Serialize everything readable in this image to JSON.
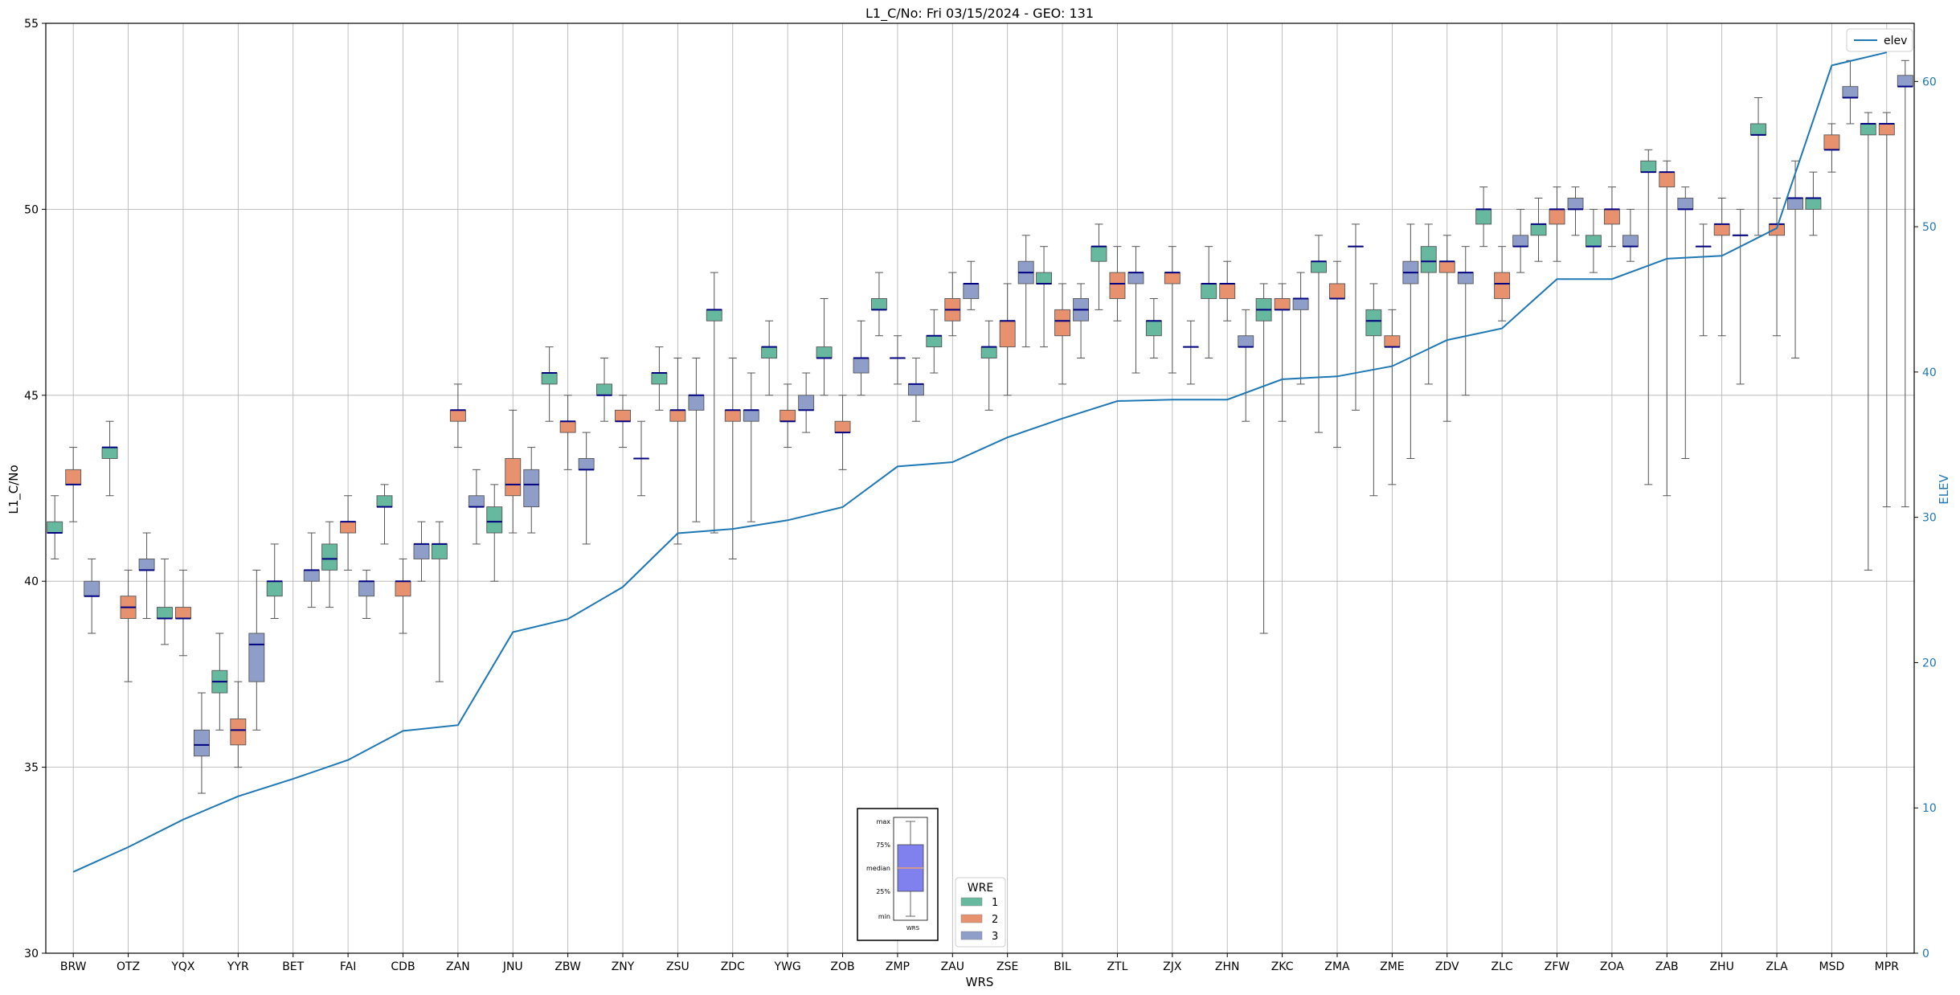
{
  "chart_data": {
    "type": "boxplot",
    "title": "L1_C/No: Fri 03/15/2024 - GEO: 131",
    "xlabel": "WRS",
    "ylabel": "L1_C/No",
    "y2label": "ELEV",
    "ylim": [
      30,
      55
    ],
    "y2lim": [
      0,
      64
    ],
    "yticks": [
      "30",
      "35",
      "40",
      "45",
      "50",
      "55"
    ],
    "y2ticks": [
      "0",
      "10",
      "20",
      "30",
      "40",
      "50",
      "60"
    ],
    "grid": true,
    "legend_line": {
      "label": "elev",
      "placement": "top-right"
    },
    "legend_boxes": {
      "title": "WRE",
      "placement": "bottom-center",
      "entries": [
        {
          "label": "1",
          "color": "#66b89e"
        },
        {
          "label": "2",
          "color": "#e8916e"
        },
        {
          "label": "3",
          "color": "#8f9ec8"
        }
      ]
    },
    "key_box": {
      "labels": [
        "max",
        "75%",
        "median",
        "25%",
        "min"
      ],
      "xlabel": "WRS",
      "fill": "#8080ee",
      "median_color": "#e8a070"
    },
    "line_color": "#1f77b4",
    "median_color": "#000080",
    "categories": [
      "BRW",
      "OTZ",
      "YQX",
      "YYR",
      "BET",
      "FAI",
      "CDB",
      "ZAN",
      "JNU",
      "ZBW",
      "ZNY",
      "ZSU",
      "ZDC",
      "YWG",
      "ZOB",
      "ZMP",
      "ZAU",
      "ZSE",
      "BIL",
      "ZTL",
      "ZJX",
      "ZHN",
      "ZKC",
      "ZMA",
      "ZME",
      "ZDV",
      "ZLC",
      "ZFW",
      "ZOA",
      "ZAB",
      "ZHU",
      "ZLA",
      "MSD",
      "MPR"
    ],
    "elev": [
      5.6,
      7.3,
      9.2,
      10.8,
      12.0,
      13.3,
      15.3,
      15.7,
      22.1,
      23.0,
      25.2,
      28.9,
      29.2,
      29.8,
      30.7,
      33.5,
      33.8,
      35.5,
      36.8,
      38.0,
      38.1,
      38.1,
      39.5,
      39.7,
      40.4,
      42.2,
      43.0,
      46.4,
      46.4,
      47.8,
      48.0,
      49.9,
      61.1,
      62.0
    ],
    "boxes": [
      {
        "wrs": "BRW",
        "wre": 1,
        "min": 40.6,
        "q1": 41.3,
        "median": 41.3,
        "q3": 41.6,
        "max": 42.3
      },
      {
        "wrs": "BRW",
        "wre": 2,
        "min": 41.6,
        "q1": 42.6,
        "median": 42.6,
        "q3": 43.0,
        "max": 43.6
      },
      {
        "wrs": "BRW",
        "wre": 3,
        "min": 38.6,
        "q1": 39.6,
        "median": 39.6,
        "q3": 40.0,
        "max": 40.6
      },
      {
        "wrs": "OTZ",
        "wre": 1,
        "min": 42.3,
        "q1": 43.3,
        "median": 43.6,
        "q3": 43.6,
        "max": 44.3
      },
      {
        "wrs": "OTZ",
        "wre": 2,
        "min": 37.3,
        "q1": 39.0,
        "median": 39.3,
        "q3": 39.6,
        "max": 40.3
      },
      {
        "wrs": "OTZ",
        "wre": 3,
        "min": 39.0,
        "q1": 40.3,
        "median": 40.3,
        "q3": 40.6,
        "max": 41.3
      },
      {
        "wrs": "YQX",
        "wre": 1,
        "min": 38.3,
        "q1": 39.0,
        "median": 39.0,
        "q3": 39.3,
        "max": 40.6
      },
      {
        "wrs": "YQX",
        "wre": 2,
        "min": 38.0,
        "q1": 39.0,
        "median": 39.0,
        "q3": 39.3,
        "max": 40.3
      },
      {
        "wrs": "YQX",
        "wre": 3,
        "min": 34.3,
        "q1": 35.3,
        "median": 35.6,
        "q3": 36.0,
        "max": 37.0
      },
      {
        "wrs": "YYR",
        "wre": 1,
        "min": 36.0,
        "q1": 37.0,
        "median": 37.3,
        "q3": 37.6,
        "max": 38.6
      },
      {
        "wrs": "YYR",
        "wre": 2,
        "min": 35.0,
        "q1": 35.6,
        "median": 36.0,
        "q3": 36.3,
        "max": 37.3
      },
      {
        "wrs": "YYR",
        "wre": 3,
        "min": 36.0,
        "q1": 37.3,
        "median": 38.3,
        "q3": 38.6,
        "max": 40.3
      },
      {
        "wrs": "BET",
        "wre": 1,
        "min": 39.0,
        "q1": 39.6,
        "median": 40.0,
        "q3": 40.0,
        "max": 41.0
      },
      {
        "wrs": "BET",
        "wre": 3,
        "min": 39.3,
        "q1": 40.0,
        "median": 40.3,
        "q3": 40.3,
        "max": 41.3
      },
      {
        "wrs": "FAI",
        "wre": 1,
        "min": 39.3,
        "q1": 40.3,
        "median": 40.6,
        "q3": 41.0,
        "max": 41.6
      },
      {
        "wrs": "FAI",
        "wre": 2,
        "min": 40.3,
        "q1": 41.3,
        "median": 41.6,
        "q3": 41.6,
        "max": 42.3
      },
      {
        "wrs": "FAI",
        "wre": 3,
        "min": 39.0,
        "q1": 39.6,
        "median": 40.0,
        "q3": 40.0,
        "max": 40.3
      },
      {
        "wrs": "CDB",
        "wre": 1,
        "min": 41.0,
        "q1": 42.0,
        "median": 42.0,
        "q3": 42.3,
        "max": 42.6
      },
      {
        "wrs": "CDB",
        "wre": 2,
        "min": 38.6,
        "q1": 39.6,
        "median": 40.0,
        "q3": 40.0,
        "max": 40.6
      },
      {
        "wrs": "CDB",
        "wre": 3,
        "min": 40.0,
        "q1": 40.6,
        "median": 41.0,
        "q3": 41.0,
        "max": 41.6
      },
      {
        "wrs": "ZAN",
        "wre": 1,
        "min": 37.3,
        "q1": 40.6,
        "median": 41.0,
        "q3": 41.0,
        "max": 41.6
      },
      {
        "wrs": "ZAN",
        "wre": 2,
        "min": 43.6,
        "q1": 44.3,
        "median": 44.6,
        "q3": 44.6,
        "max": 45.3
      },
      {
        "wrs": "ZAN",
        "wre": 3,
        "min": 41.0,
        "q1": 42.0,
        "median": 42.0,
        "q3": 42.3,
        "max": 43.0
      },
      {
        "wrs": "JNU",
        "wre": 1,
        "min": 40.0,
        "q1": 41.3,
        "median": 41.6,
        "q3": 42.0,
        "max": 42.6
      },
      {
        "wrs": "JNU",
        "wre": 2,
        "min": 41.3,
        "q1": 42.3,
        "median": 42.6,
        "q3": 43.3,
        "max": 44.6
      },
      {
        "wrs": "JNU",
        "wre": 3,
        "min": 41.3,
        "q1": 42.0,
        "median": 42.6,
        "q3": 43.0,
        "max": 43.6
      },
      {
        "wrs": "ZBW",
        "wre": 1,
        "min": 44.3,
        "q1": 45.3,
        "median": 45.6,
        "q3": 45.6,
        "max": 46.3
      },
      {
        "wrs": "ZBW",
        "wre": 2,
        "min": 43.0,
        "q1": 44.0,
        "median": 44.3,
        "q3": 44.3,
        "max": 45.0
      },
      {
        "wrs": "ZBW",
        "wre": 3,
        "min": 41.0,
        "q1": 43.0,
        "median": 43.0,
        "q3": 43.3,
        "max": 44.0
      },
      {
        "wrs": "ZNY",
        "wre": 1,
        "min": 44.3,
        "q1": 45.0,
        "median": 45.0,
        "q3": 45.3,
        "max": 46.0
      },
      {
        "wrs": "ZNY",
        "wre": 2,
        "min": 43.6,
        "q1": 44.3,
        "median": 44.3,
        "q3": 44.6,
        "max": 45.0
      },
      {
        "wrs": "ZNY",
        "wre": 3,
        "min": 42.3,
        "q1": 43.3,
        "median": 43.3,
        "q3": 43.3,
        "max": 44.3
      },
      {
        "wrs": "ZSU",
        "wre": 1,
        "min": 44.6,
        "q1": 45.3,
        "median": 45.6,
        "q3": 45.6,
        "max": 46.3
      },
      {
        "wrs": "ZSU",
        "wre": 2,
        "min": 41.0,
        "q1": 44.3,
        "median": 44.6,
        "q3": 44.6,
        "max": 46.0
      },
      {
        "wrs": "ZSU",
        "wre": 3,
        "min": 41.6,
        "q1": 44.6,
        "median": 45.0,
        "q3": 45.0,
        "max": 46.0
      },
      {
        "wrs": "ZDC",
        "wre": 1,
        "min": 41.3,
        "q1": 47.0,
        "median": 47.3,
        "q3": 47.3,
        "max": 48.3
      },
      {
        "wrs": "ZDC",
        "wre": 2,
        "min": 40.6,
        "q1": 44.3,
        "median": 44.6,
        "q3": 44.6,
        "max": 46.0
      },
      {
        "wrs": "ZDC",
        "wre": 3,
        "min": 41.6,
        "q1": 44.3,
        "median": 44.6,
        "q3": 44.6,
        "max": 45.6
      },
      {
        "wrs": "YWG",
        "wre": 1,
        "min": 45.0,
        "q1": 46.0,
        "median": 46.3,
        "q3": 46.3,
        "max": 47.0
      },
      {
        "wrs": "YWG",
        "wre": 2,
        "min": 43.6,
        "q1": 44.3,
        "median": 44.3,
        "q3": 44.6,
        "max": 45.3
      },
      {
        "wrs": "YWG",
        "wre": 3,
        "min": 44.0,
        "q1": 44.6,
        "median": 44.6,
        "q3": 45.0,
        "max": 45.6
      },
      {
        "wrs": "ZOB",
        "wre": 1,
        "min": 45.0,
        "q1": 46.0,
        "median": 46.0,
        "q3": 46.3,
        "max": 47.6
      },
      {
        "wrs": "ZOB",
        "wre": 2,
        "min": 43.0,
        "q1": 44.0,
        "median": 44.0,
        "q3": 44.3,
        "max": 45.0
      },
      {
        "wrs": "ZOB",
        "wre": 3,
        "min": 45.0,
        "q1": 45.6,
        "median": 46.0,
        "q3": 46.0,
        "max": 47.0
      },
      {
        "wrs": "ZMP",
        "wre": 1,
        "min": 46.6,
        "q1": 47.3,
        "median": 47.3,
        "q3": 47.6,
        "max": 48.3
      },
      {
        "wrs": "ZMP",
        "wre": 2,
        "min": 45.3,
        "q1": 46.0,
        "median": 46.0,
        "q3": 46.0,
        "max": 46.6
      },
      {
        "wrs": "ZMP",
        "wre": 3,
        "min": 44.3,
        "q1": 45.0,
        "median": 45.3,
        "q3": 45.3,
        "max": 46.0
      },
      {
        "wrs": "ZAU",
        "wre": 1,
        "min": 45.6,
        "q1": 46.3,
        "median": 46.6,
        "q3": 46.6,
        "max": 47.3
      },
      {
        "wrs": "ZAU",
        "wre": 2,
        "min": 46.6,
        "q1": 47.0,
        "median": 47.3,
        "q3": 47.6,
        "max": 48.3
      },
      {
        "wrs": "ZAU",
        "wre": 3,
        "min": 47.3,
        "q1": 47.6,
        "median": 48.0,
        "q3": 48.0,
        "max": 48.6
      },
      {
        "wrs": "ZSE",
        "wre": 1,
        "min": 44.6,
        "q1": 46.0,
        "median": 46.3,
        "q3": 46.3,
        "max": 47.0
      },
      {
        "wrs": "ZSE",
        "wre": 2,
        "min": 45.0,
        "q1": 46.3,
        "median": 47.0,
        "q3": 47.0,
        "max": 48.0
      },
      {
        "wrs": "ZSE",
        "wre": 3,
        "min": 46.3,
        "q1": 48.0,
        "median": 48.3,
        "q3": 48.6,
        "max": 49.3
      },
      {
        "wrs": "BIL",
        "wre": 1,
        "min": 46.3,
        "q1": 48.0,
        "median": 48.0,
        "q3": 48.3,
        "max": 49.0
      },
      {
        "wrs": "BIL",
        "wre": 2,
        "min": 45.3,
        "q1": 46.6,
        "median": 47.0,
        "q3": 47.3,
        "max": 48.0
      },
      {
        "wrs": "BIL",
        "wre": 3,
        "min": 46.0,
        "q1": 47.0,
        "median": 47.3,
        "q3": 47.6,
        "max": 48.0
      },
      {
        "wrs": "ZTL",
        "wre": 1,
        "min": 47.3,
        "q1": 48.6,
        "median": 49.0,
        "q3": 49.0,
        "max": 49.6
      },
      {
        "wrs": "ZTL",
        "wre": 2,
        "min": 47.0,
        "q1": 47.6,
        "median": 48.0,
        "q3": 48.3,
        "max": 49.0
      },
      {
        "wrs": "ZTL",
        "wre": 3,
        "min": 45.6,
        "q1": 48.0,
        "median": 48.3,
        "q3": 48.3,
        "max": 49.0
      },
      {
        "wrs": "ZJX",
        "wre": 1,
        "min": 46.0,
        "q1": 46.6,
        "median": 47.0,
        "q3": 47.0,
        "max": 47.6
      },
      {
        "wrs": "ZJX",
        "wre": 2,
        "min": 45.6,
        "q1": 48.0,
        "median": 48.3,
        "q3": 48.3,
        "max": 49.0
      },
      {
        "wrs": "ZJX",
        "wre": 3,
        "min": 45.3,
        "q1": 46.3,
        "median": 46.3,
        "q3": 46.3,
        "max": 47.0
      },
      {
        "wrs": "ZHN",
        "wre": 1,
        "min": 46.0,
        "q1": 47.6,
        "median": 48.0,
        "q3": 48.0,
        "max": 49.0
      },
      {
        "wrs": "ZHN",
        "wre": 2,
        "min": 47.0,
        "q1": 47.6,
        "median": 48.0,
        "q3": 48.0,
        "max": 48.6
      },
      {
        "wrs": "ZHN",
        "wre": 3,
        "min": 44.3,
        "q1": 46.3,
        "median": 46.3,
        "q3": 46.6,
        "max": 47.3
      },
      {
        "wrs": "ZKC",
        "wre": 1,
        "min": 38.6,
        "q1": 47.0,
        "median": 47.3,
        "q3": 47.6,
        "max": 48.0
      },
      {
        "wrs": "ZKC",
        "wre": 2,
        "min": 44.3,
        "q1": 47.3,
        "median": 47.3,
        "q3": 47.6,
        "max": 48.0
      },
      {
        "wrs": "ZKC",
        "wre": 3,
        "min": 45.3,
        "q1": 47.3,
        "median": 47.6,
        "q3": 47.6,
        "max": 48.3
      },
      {
        "wrs": "ZMA",
        "wre": 1,
        "min": 44.0,
        "q1": 48.3,
        "median": 48.6,
        "q3": 48.6,
        "max": 49.3
      },
      {
        "wrs": "ZMA",
        "wre": 2,
        "min": 43.6,
        "q1": 47.6,
        "median": 47.6,
        "q3": 48.0,
        "max": 48.6
      },
      {
        "wrs": "ZMA",
        "wre": 3,
        "min": 44.6,
        "q1": 49.0,
        "median": 49.0,
        "q3": 49.0,
        "max": 49.6
      },
      {
        "wrs": "ZME",
        "wre": 1,
        "min": 42.3,
        "q1": 46.6,
        "median": 47.0,
        "q3": 47.3,
        "max": 48.0
      },
      {
        "wrs": "ZME",
        "wre": 2,
        "min": 42.6,
        "q1": 46.3,
        "median": 46.3,
        "q3": 46.6,
        "max": 47.3
      },
      {
        "wrs": "ZME",
        "wre": 3,
        "min": 43.3,
        "q1": 48.0,
        "median": 48.3,
        "q3": 48.6,
        "max": 49.6
      },
      {
        "wrs": "ZDV",
        "wre": 1,
        "min": 45.3,
        "q1": 48.3,
        "median": 48.6,
        "q3": 49.0,
        "max": 49.6
      },
      {
        "wrs": "ZDV",
        "wre": 2,
        "min": 44.3,
        "q1": 48.3,
        "median": 48.6,
        "q3": 48.6,
        "max": 49.3
      },
      {
        "wrs": "ZDV",
        "wre": 3,
        "min": 45.0,
        "q1": 48.0,
        "median": 48.3,
        "q3": 48.3,
        "max": 49.0
      },
      {
        "wrs": "ZLC",
        "wre": 1,
        "min": 49.0,
        "q1": 49.6,
        "median": 50.0,
        "q3": 50.0,
        "max": 50.6
      },
      {
        "wrs": "ZLC",
        "wre": 2,
        "min": 47.0,
        "q1": 47.6,
        "median": 48.0,
        "q3": 48.3,
        "max": 49.0
      },
      {
        "wrs": "ZLC",
        "wre": 3,
        "min": 48.3,
        "q1": 49.0,
        "median": 49.0,
        "q3": 49.3,
        "max": 50.0
      },
      {
        "wrs": "ZFW",
        "wre": 1,
        "min": 48.6,
        "q1": 49.3,
        "median": 49.6,
        "q3": 49.6,
        "max": 50.3
      },
      {
        "wrs": "ZFW",
        "wre": 2,
        "min": 48.6,
        "q1": 49.6,
        "median": 50.0,
        "q3": 50.0,
        "max": 50.6
      },
      {
        "wrs": "ZFW",
        "wre": 3,
        "min": 49.3,
        "q1": 50.0,
        "median": 50.0,
        "q3": 50.3,
        "max": 50.6
      },
      {
        "wrs": "ZOA",
        "wre": 1,
        "min": 48.3,
        "q1": 49.0,
        "median": 49.0,
        "q3": 49.3,
        "max": 50.0
      },
      {
        "wrs": "ZOA",
        "wre": 2,
        "min": 49.0,
        "q1": 49.6,
        "median": 50.0,
        "q3": 50.0,
        "max": 50.6
      },
      {
        "wrs": "ZOA",
        "wre": 3,
        "min": 48.6,
        "q1": 49.0,
        "median": 49.0,
        "q3": 49.3,
        "max": 50.0
      },
      {
        "wrs": "ZAB",
        "wre": 1,
        "min": 42.6,
        "q1": 51.0,
        "median": 51.0,
        "q3": 51.3,
        "max": 51.6
      },
      {
        "wrs": "ZAB",
        "wre": 2,
        "min": 42.3,
        "q1": 50.6,
        "median": 51.0,
        "q3": 51.0,
        "max": 51.3
      },
      {
        "wrs": "ZAB",
        "wre": 3,
        "min": 43.3,
        "q1": 50.0,
        "median": 50.0,
        "q3": 50.3,
        "max": 50.6
      },
      {
        "wrs": "ZHU",
        "wre": 1,
        "min": 46.6,
        "q1": 49.0,
        "median": 49.0,
        "q3": 49.0,
        "max": 49.6
      },
      {
        "wrs": "ZHU",
        "wre": 2,
        "min": 46.6,
        "q1": 49.3,
        "median": 49.6,
        "q3": 49.6,
        "max": 50.3
      },
      {
        "wrs": "ZHU",
        "wre": 3,
        "min": 45.3,
        "q1": 49.3,
        "median": 49.3,
        "q3": 49.3,
        "max": 50.0
      },
      {
        "wrs": "ZLA",
        "wre": 1,
        "min": 49.3,
        "q1": 52.0,
        "median": 52.0,
        "q3": 52.3,
        "max": 53.0
      },
      {
        "wrs": "ZLA",
        "wre": 2,
        "min": 46.6,
        "q1": 49.3,
        "median": 49.6,
        "q3": 49.6,
        "max": 50.3
      },
      {
        "wrs": "ZLA",
        "wre": 3,
        "min": 46.0,
        "q1": 50.0,
        "median": 50.3,
        "q3": 50.3,
        "max": 51.3
      },
      {
        "wrs": "MSD",
        "wre": 1,
        "min": 49.3,
        "q1": 50.0,
        "median": 50.3,
        "q3": 50.3,
        "max": 51.0
      },
      {
        "wrs": "MSD",
        "wre": 2,
        "min": 51.0,
        "q1": 51.6,
        "median": 51.6,
        "q3": 52.0,
        "max": 52.3
      },
      {
        "wrs": "MSD",
        "wre": 3,
        "min": 52.3,
        "q1": 53.0,
        "median": 53.0,
        "q3": 53.3,
        "max": 54.0
      },
      {
        "wrs": "MPR",
        "wre": 1,
        "min": 40.3,
        "q1": 52.0,
        "median": 52.3,
        "q3": 52.3,
        "max": 52.6
      },
      {
        "wrs": "MPR",
        "wre": 2,
        "min": 42.0,
        "q1": 52.0,
        "median": 52.3,
        "q3": 52.3,
        "max": 52.6
      },
      {
        "wrs": "MPR",
        "wre": 3,
        "min": 42.0,
        "q1": 53.3,
        "median": 53.3,
        "q3": 53.6,
        "max": 54.0
      }
    ]
  }
}
